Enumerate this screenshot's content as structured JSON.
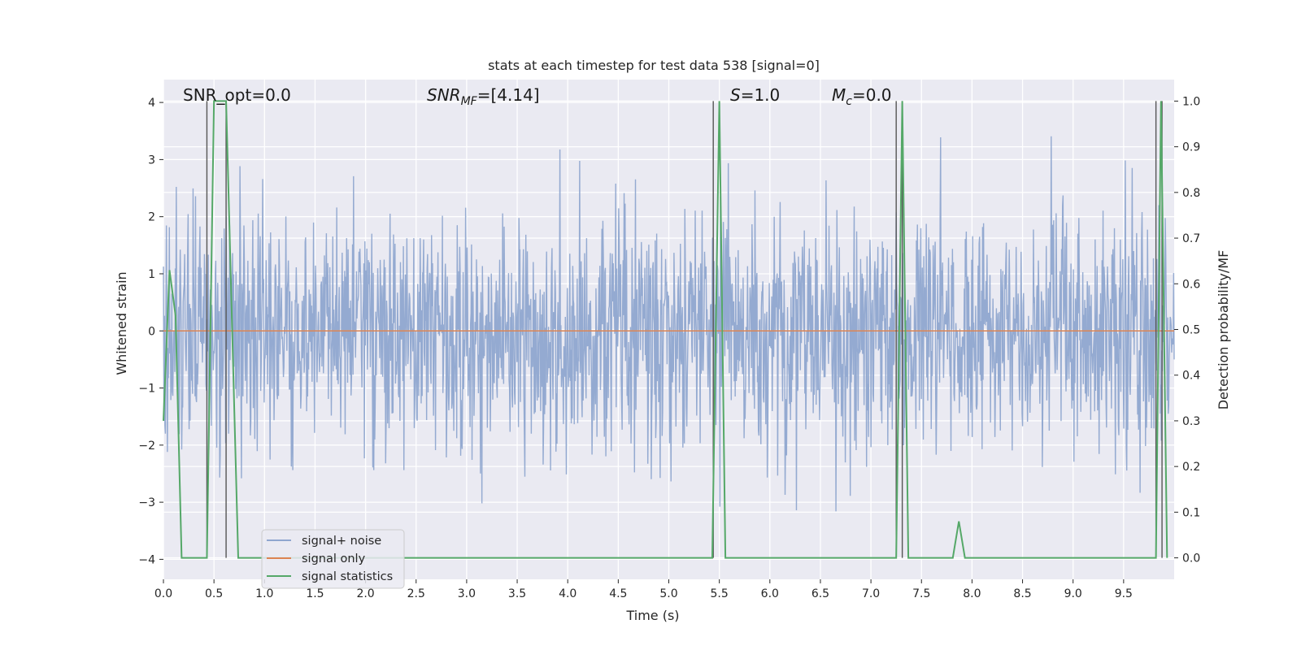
{
  "chart_data": {
    "type": "line",
    "title": "stats at each timestep for test data 538 [signal=0]",
    "xlabel": "Time (s)",
    "ylabel": "Whitened strain",
    "y2label": "Detection probability/MF",
    "xlim": [
      0,
      10
    ],
    "ylim": [
      -4.35,
      4.4
    ],
    "y2lim": [
      -0.047,
      1.047
    ],
    "x_ticks": [
      "0.0",
      "0.5",
      "1.0",
      "1.5",
      "2.0",
      "2.5",
      "3.0",
      "3.5",
      "4.0",
      "4.5",
      "5.0",
      "5.5",
      "6.0",
      "6.5",
      "7.0",
      "7.5",
      "8.0",
      "8.5",
      "9.0",
      "9.5"
    ],
    "y_ticks": [
      "4",
      "3",
      "2",
      "1",
      "0",
      "−1",
      "−2",
      "−3",
      "−4"
    ],
    "y2_ticks": [
      "1.0",
      "0.9",
      "0.8",
      "0.7",
      "0.6",
      "0.5",
      "0.4",
      "0.3",
      "0.2",
      "0.1",
      "0.0"
    ],
    "grid": true,
    "legend_position": "lower-left",
    "legend": [
      {
        "label": "signal+ noise",
        "color": "#8fa6cf"
      },
      {
        "label": "signal only",
        "color": "#dd8452"
      },
      {
        "label": "signal statistics",
        "color": "#55a868"
      }
    ],
    "annotations": {
      "snr_opt": "SNR_opt=0.0",
      "snr_mf_label": "SNR",
      "snr_mf_sub": "MF",
      "snr_mf_value": "=[4.14]",
      "s_label": "S",
      "s_value": "=1.0",
      "mc_label": "M",
      "mc_sub": "c",
      "mc_value": "=0.0"
    },
    "noise": {
      "description_values": "whitened noise around 0 with std about 1",
      "std": 1.0,
      "n_samples": 2048,
      "seed": 538
    },
    "signal_only": {
      "value": 0.0
    },
    "signal_statistics": {
      "axis": "right",
      "x": [
        0.0,
        0.06,
        0.12,
        0.18,
        0.43,
        0.5,
        0.62,
        0.74,
        5.43,
        5.5,
        5.56,
        7.25,
        7.31,
        7.37,
        7.81,
        7.87,
        7.93,
        9.82,
        9.87,
        9.93
      ],
      "y": [
        0.3,
        0.63,
        0.53,
        0.0,
        0.0,
        1.0,
        1.0,
        0.0,
        0.0,
        1.0,
        0.0,
        0.0,
        1.0,
        0.0,
        0.0,
        0.08,
        0.0,
        0.0,
        1.0,
        0.0
      ]
    },
    "detection_markers": {
      "color": "#555555",
      "segments": [
        {
          "x": 0.43,
          "y0": 0.0,
          "y1": 1.0
        },
        {
          "x": 0.62,
          "y0": 0.0,
          "y1": 1.0
        },
        {
          "x": 5.44,
          "y0": 0.0,
          "y1": 1.0
        },
        {
          "x": 7.25,
          "y0": 0.0,
          "y1": 1.0
        },
        {
          "x": 7.31,
          "y0": 0.0,
          "y1": 1.0
        },
        {
          "x": 9.82,
          "y0": 0.0,
          "y1": 1.0
        },
        {
          "x": 9.88,
          "y0": 0.0,
          "y1": 1.0
        }
      ],
      "caps": [
        {
          "x0": 0.53,
          "x1": 0.62,
          "y": 1.0
        }
      ]
    },
    "colors": {
      "background": "#eaeaf2",
      "grid": "#ffffff",
      "noise": "#8fa6cf",
      "signal_only": "#dd8452",
      "statistics": "#55a868"
    }
  }
}
